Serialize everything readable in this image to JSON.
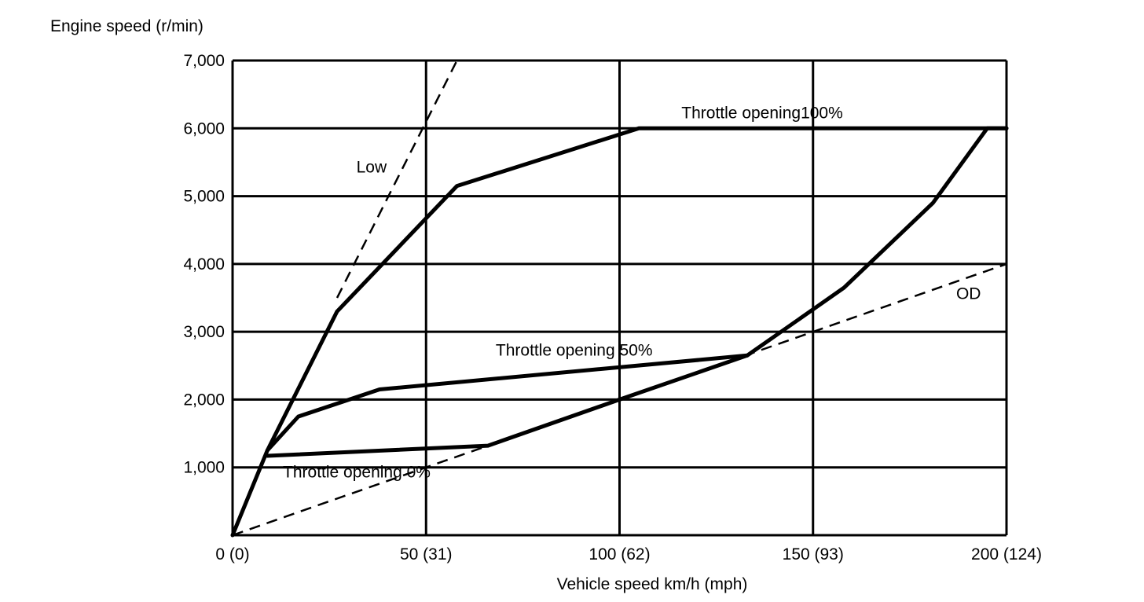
{
  "chart_data": {
    "type": "line",
    "xlabel": "Vehicle speed  km/h (mph)",
    "ylabel": "Engine speed (r/min)",
    "xlim": [
      0,
      200
    ],
    "ylim": [
      0,
      7000
    ],
    "grid": true,
    "x_ticks": [
      {
        "value": 0,
        "label": "0 (0)"
      },
      {
        "value": 50,
        "label": "50 (31)"
      },
      {
        "value": 100,
        "label": "100 (62)"
      },
      {
        "value": 150,
        "label": "150 (93)"
      },
      {
        "value": 200,
        "label": "200 (124)"
      }
    ],
    "y_ticks": [
      {
        "value": 1000,
        "label": "1,000"
      },
      {
        "value": 2000,
        "label": "2,000"
      },
      {
        "value": 3000,
        "label": "3,000"
      },
      {
        "value": 4000,
        "label": "4,000"
      },
      {
        "value": 5000,
        "label": "5,000"
      },
      {
        "value": 6000,
        "label": "6,000"
      },
      {
        "value": 7000,
        "label": "7,000"
      }
    ],
    "series": [
      {
        "name": "Throttle opening100%",
        "style": "solid",
        "points": [
          [
            0,
            0
          ],
          [
            9,
            1250
          ],
          [
            27,
            3300
          ],
          [
            58,
            5150
          ],
          [
            105,
            6000
          ],
          [
            200,
            6000
          ]
        ]
      },
      {
        "name": "Throttle opening 50%",
        "style": "solid",
        "points": [
          [
            9,
            1250
          ],
          [
            17,
            1750
          ],
          [
            38,
            2150
          ],
          [
            133,
            2650
          ],
          [
            158,
            3650
          ],
          [
            181,
            4900
          ],
          [
            195,
            6000
          ],
          [
            200,
            6000
          ]
        ]
      },
      {
        "name": "Throttle opening 0%",
        "style": "solid",
        "points": [
          [
            9,
            1170
          ],
          [
            66,
            1320
          ],
          [
            100,
            2000
          ],
          [
            133,
            2650
          ]
        ]
      },
      {
        "name": "Low",
        "style": "dashed",
        "points": [
          [
            27,
            3500
          ],
          [
            58,
            7000
          ]
        ]
      },
      {
        "name": "OD",
        "style": "dashed",
        "points": [
          [
            0,
            0
          ],
          [
            200,
            4000
          ]
        ]
      }
    ],
    "annotations": [
      {
        "text": "Throttle opening100%",
        "x": 116,
        "y": 6150
      },
      {
        "text": "Throttle opening 50%",
        "x": 68,
        "y": 2650
      },
      {
        "text": "Throttle opening 0%",
        "x": 13,
        "y": 850
      },
      {
        "text": "Low",
        "x": 32,
        "y": 5350
      },
      {
        "text": "OD",
        "x": 187,
        "y": 3480
      }
    ]
  }
}
